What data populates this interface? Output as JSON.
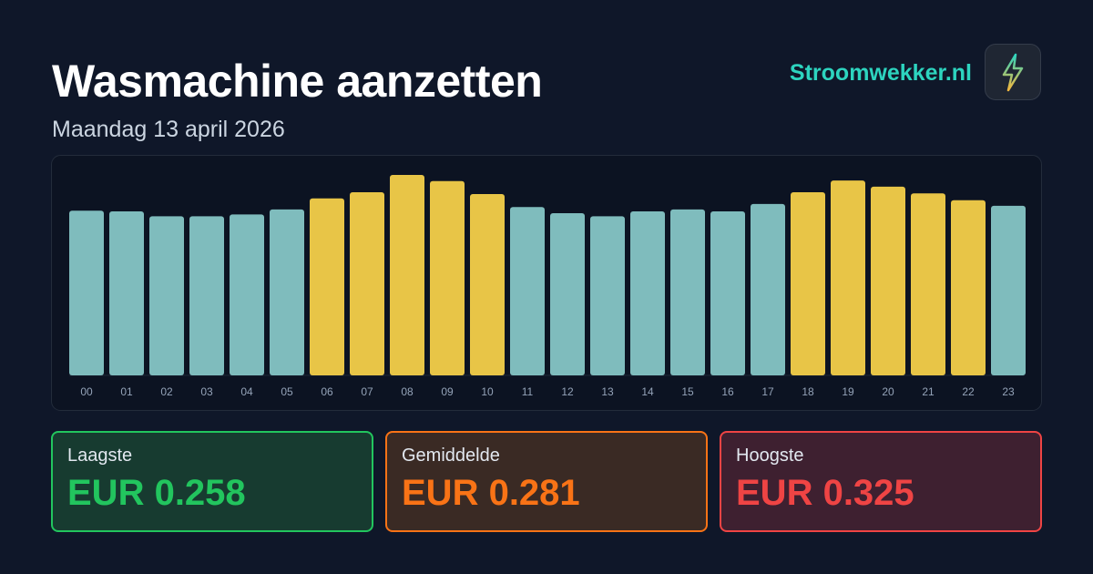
{
  "chart_data": {
    "type": "bar",
    "title": "Wasmachine aanzetten",
    "subtitle": "Maandag 13 april 2026",
    "categories": [
      "00",
      "01",
      "02",
      "03",
      "04",
      "05",
      "06",
      "07",
      "08",
      "09",
      "10",
      "11",
      "12",
      "13",
      "14",
      "15",
      "16",
      "17",
      "18",
      "19",
      "20",
      "21",
      "22",
      "23"
    ],
    "values": [
      0.267,
      0.266,
      0.258,
      0.258,
      0.261,
      0.269,
      0.287,
      0.297,
      0.325,
      0.315,
      0.294,
      0.273,
      0.263,
      0.258,
      0.266,
      0.269,
      0.266,
      0.278,
      0.297,
      0.316,
      0.306,
      0.295,
      0.284,
      0.275
    ],
    "colors": [
      "#7fbcbd",
      "#7fbcbd",
      "#7fbcbd",
      "#7fbcbd",
      "#7fbcbd",
      "#7fbcbd",
      "#e8c547",
      "#e8c547",
      "#e8c547",
      "#e8c547",
      "#e8c547",
      "#7fbcbd",
      "#7fbcbd",
      "#7fbcbd",
      "#7fbcbd",
      "#7fbcbd",
      "#7fbcbd",
      "#7fbcbd",
      "#e8c547",
      "#e8c547",
      "#e8c547",
      "#e8c547",
      "#e8c547",
      "#7fbcbd"
    ]
  },
  "brand": "Stroomwekker.nl",
  "stats": [
    {
      "label": "Laagste",
      "value": "EUR 0.258"
    },
    {
      "label": "Gemiddelde",
      "value": "EUR 0.281"
    },
    {
      "label": "Hoogste",
      "value": "EUR 0.325"
    }
  ]
}
